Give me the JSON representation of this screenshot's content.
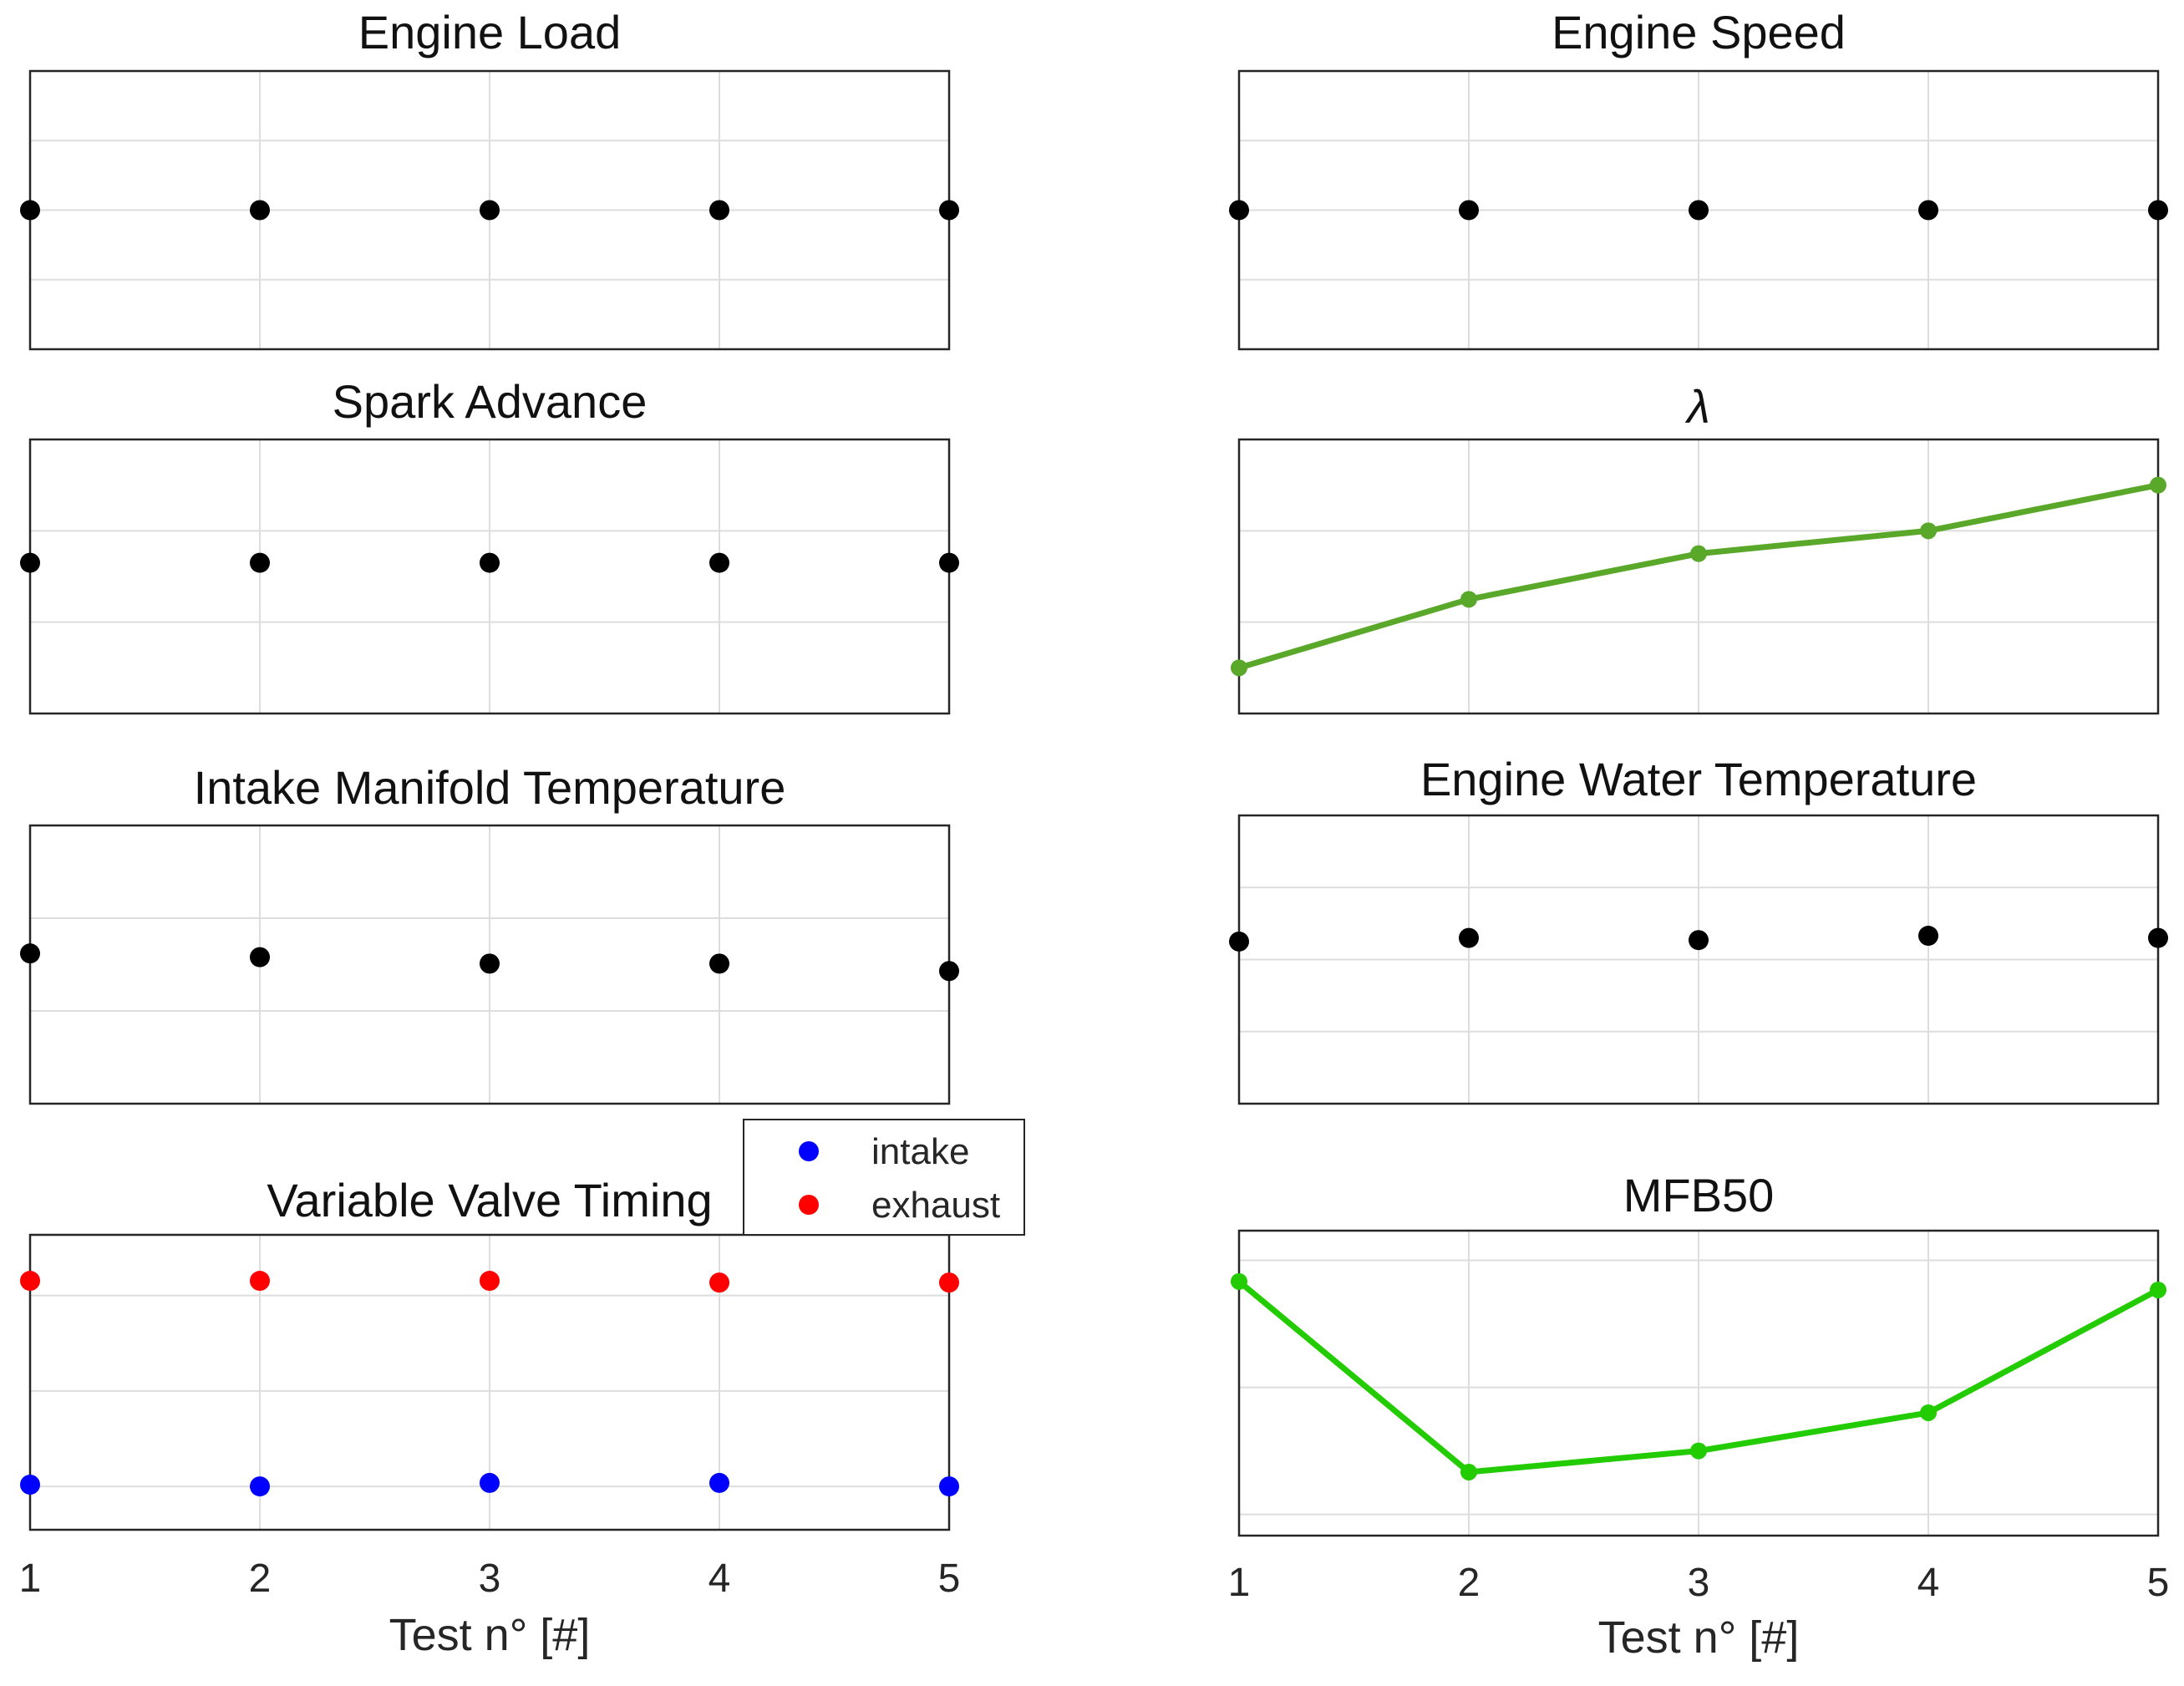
{
  "figure": {
    "colors": {
      "black": "#000000",
      "intake": "#0000ff",
      "exhaust": "#ff0000",
      "lambda": "#5aa829",
      "mfb50": "#22cc00"
    },
    "xlabel": "Test n° [#]"
  },
  "chart_data": [
    {
      "id": "engine-load",
      "type": "scatter",
      "title": "Engine Load",
      "x": [
        1,
        2,
        3,
        4,
        5
      ],
      "xlim": [
        1,
        5
      ],
      "ylim": [
        0,
        4
      ],
      "series": [
        {
          "name": "",
          "color": "black",
          "values": [
            2,
            2,
            2,
            2,
            2
          ]
        }
      ]
    },
    {
      "id": "engine-speed",
      "type": "scatter",
      "title": "Engine Speed",
      "x": [
        1,
        2,
        3,
        4,
        5
      ],
      "xlim": [
        1,
        5
      ],
      "ylim": [
        0,
        4
      ],
      "series": [
        {
          "name": "",
          "color": "black",
          "values": [
            2,
            2,
            2,
            2,
            2
          ]
        }
      ]
    },
    {
      "id": "spark-advance",
      "type": "scatter",
      "title": "Spark Advance",
      "x": [
        1,
        2,
        3,
        4,
        5
      ],
      "xlim": [
        1,
        5
      ],
      "ylim": [
        0,
        3
      ],
      "series": [
        {
          "name": "",
          "color": "black",
          "values": [
            1.65,
            1.65,
            1.65,
            1.65,
            1.65
          ]
        }
      ]
    },
    {
      "id": "lambda",
      "type": "line",
      "title": "λ",
      "x": [
        1,
        2,
        3,
        4,
        5
      ],
      "xlim": [
        1,
        5
      ],
      "ylim": [
        0,
        3
      ],
      "series": [
        {
          "name": "",
          "color": "lambda",
          "values": [
            0.5,
            1.25,
            1.75,
            2.0,
            2.5
          ]
        }
      ]
    },
    {
      "id": "intake-manifold-temperature",
      "type": "scatter",
      "title": "Intake Manifold Temperature",
      "x": [
        1,
        2,
        3,
        4,
        5
      ],
      "xlim": [
        1,
        5
      ],
      "ylim": [
        0,
        3
      ],
      "series": [
        {
          "name": "",
          "color": "black",
          "values": [
            1.62,
            1.58,
            1.51,
            1.51,
            1.43
          ]
        }
      ]
    },
    {
      "id": "engine-water-temperature",
      "type": "scatter",
      "title": "Engine Water Temperature",
      "x": [
        1,
        2,
        3,
        4,
        5
      ],
      "xlim": [
        1,
        5
      ],
      "ylim": [
        0,
        4
      ],
      "series": [
        {
          "name": "",
          "color": "black",
          "values": [
            2.25,
            2.3,
            2.27,
            2.33,
            2.3
          ]
        }
      ]
    },
    {
      "id": "variable-valve-timing",
      "type": "scatter",
      "title": "Variable Valve Timing",
      "x": [
        1,
        2,
        3,
        4,
        5
      ],
      "xlim": [
        1,
        5
      ],
      "ylim": [
        0,
        3.4
      ],
      "xticks": [
        "1",
        "2",
        "3",
        "4",
        "5"
      ],
      "xlabel": "Test n° [#]",
      "legend": {
        "location": "top-right",
        "entries": [
          "intake",
          "exhaust"
        ]
      },
      "series": [
        {
          "name": "intake",
          "color": "intake",
          "values": [
            0.52,
            0.5,
            0.54,
            0.54,
            0.5
          ]
        },
        {
          "name": "exhaust",
          "color": "exhaust",
          "values": [
            2.87,
            2.87,
            2.87,
            2.85,
            2.85
          ]
        }
      ]
    },
    {
      "id": "mfb50",
      "type": "line",
      "title": "MFB50",
      "x": [
        1,
        2,
        3,
        4,
        5
      ],
      "xlim": [
        1,
        5
      ],
      "ylim": [
        0,
        3.6
      ],
      "xticks": [
        "1",
        "2",
        "3",
        "4",
        "5"
      ],
      "xlabel": "Test n° [#]",
      "series": [
        {
          "name": "",
          "color": "mfb50",
          "values": [
            3.0,
            0.75,
            1.0,
            1.45,
            2.9
          ]
        }
      ]
    }
  ]
}
